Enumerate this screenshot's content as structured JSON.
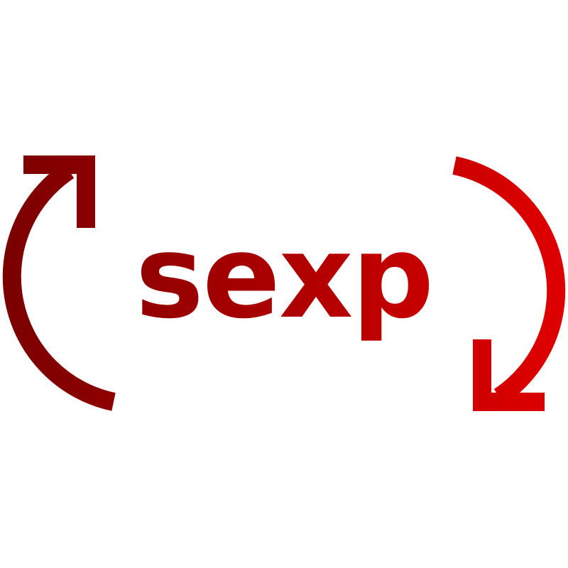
{
  "logo": {
    "text": "sexp",
    "colors": {
      "gradient_start": "#7a0000",
      "gradient_end": "#e00000",
      "background": "#ffffff"
    },
    "icons": {
      "left": "circular-arrow-up-right-icon",
      "right": "circular-arrow-down-left-icon"
    }
  }
}
